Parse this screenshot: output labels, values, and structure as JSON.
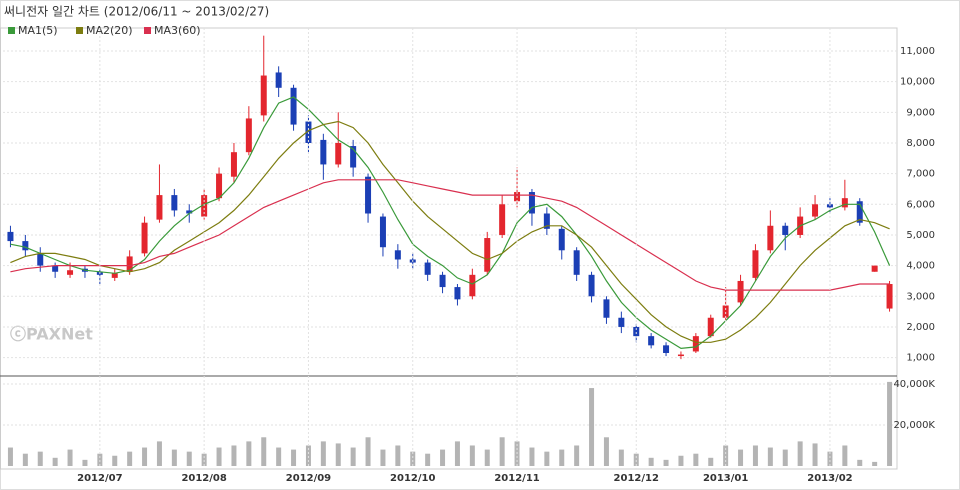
{
  "chart_data": [
    {
      "type": "candlestick",
      "title": "써니전자 일간 차트 (2012/06/11 ~ 2013/02/27)",
      "watermark": "ⓒPAXNet",
      "up_color": "#e3262e",
      "down_color": "#1b3fb5",
      "open": [
        5100,
        4800,
        4400,
        4000,
        3700,
        3900,
        3800,
        3600,
        3800,
        4400,
        5500,
        6300,
        5800,
        5600,
        6200,
        6900,
        7700,
        8900,
        10300,
        9800,
        8700,
        8100,
        7300,
        7900,
        6900,
        5600,
        4500,
        4200,
        4100,
        3700,
        3300,
        3000,
        3800,
        5000,
        6100,
        6400,
        5700,
        5200,
        4500,
        3700,
        2900,
        2300,
        2000,
        1700,
        1400,
        1050,
        1200,
        1700,
        2300,
        2800,
        3600,
        4500,
        5300,
        5000,
        5600,
        6000,
        5900,
        6100,
        3800,
        2600
      ],
      "high": [
        5300,
        5000,
        4600,
        4100,
        4100,
        4000,
        3900,
        3900,
        4500,
        5600,
        7300,
        6500,
        6000,
        6500,
        7200,
        8000,
        9200,
        11500,
        10500,
        9900,
        8900,
        8300,
        9000,
        8100,
        7000,
        5700,
        4700,
        4400,
        4200,
        3800,
        3400,
        3900,
        5100,
        6300,
        7200,
        6500,
        5900,
        5300,
        4600,
        3800,
        3000,
        2500,
        2100,
        1800,
        1500,
        1200,
        1800,
        2400,
        3300,
        3700,
        4700,
        5800,
        5400,
        5900,
        6300,
        6200,
        6800,
        6200,
        4000,
        3500
      ],
      "low": [
        4600,
        4300,
        3800,
        3600,
        3600,
        3600,
        3400,
        3500,
        3700,
        4300,
        5400,
        5600,
        5400,
        5500,
        6100,
        6700,
        7600,
        8700,
        9500,
        8400,
        7700,
        6800,
        7200,
        6900,
        5400,
        4300,
        3900,
        3900,
        3500,
        3100,
        2700,
        2900,
        3700,
        4900,
        5900,
        5300,
        5000,
        4200,
        3500,
        2800,
        2100,
        1800,
        1500,
        1300,
        1050,
        950,
        1150,
        1650,
        2200,
        2700,
        3500,
        4400,
        4500,
        4900,
        5500,
        5700,
        5800,
        5300,
        3800,
        2500
      ],
      "close": [
        4800,
        4500,
        4000,
        3800,
        3850,
        3800,
        3700,
        3750,
        4300,
        5400,
        6300,
        5800,
        5700,
        6300,
        7000,
        7700,
        8800,
        10200,
        9800,
        8600,
        8000,
        7300,
        8000,
        7200,
        5700,
        4600,
        4200,
        4100,
        3700,
        3300,
        2900,
        3700,
        4900,
        6000,
        6400,
        5700,
        5200,
        4500,
        3700,
        3000,
        2300,
        2000,
        1700,
        1400,
        1150,
        1100,
        1700,
        2300,
        2700,
        3500,
        4500,
        5300,
        5000,
        5600,
        6000,
        5900,
        6200,
        5400,
        4000,
        3400
      ],
      "series": [
        {
          "name": "MA1(5)",
          "color": "#3a9a3a",
          "values": [
            4700,
            4600,
            4400,
            4200,
            4000,
            3850,
            3800,
            3750,
            3850,
            4200,
            4800,
            5300,
            5700,
            6000,
            6200,
            6700,
            7500,
            8500,
            9300,
            9500,
            9100,
            8600,
            8100,
            7800,
            7200,
            6400,
            5500,
            4700,
            4300,
            4000,
            3600,
            3400,
            3700,
            4400,
            5400,
            5900,
            6000,
            5600,
            5000,
            4300,
            3500,
            2800,
            2300,
            1900,
            1600,
            1300,
            1350,
            1700,
            2200,
            2700,
            3500,
            4300,
            4900,
            5300,
            5500,
            5800,
            6000,
            6000,
            5100,
            4000
          ]
        },
        {
          "name": "MA2(20)",
          "color": "#7d7d10",
          "values": [
            4100,
            4300,
            4400,
            4400,
            4300,
            4200,
            4000,
            3900,
            3800,
            3900,
            4100,
            4500,
            4800,
            5100,
            5400,
            5800,
            6300,
            6900,
            7500,
            8000,
            8400,
            8600,
            8700,
            8500,
            8000,
            7300,
            6700,
            6100,
            5600,
            5200,
            4800,
            4400,
            4200,
            4400,
            4800,
            5100,
            5300,
            5300,
            5000,
            4600,
            4000,
            3400,
            2900,
            2400,
            2000,
            1700,
            1500,
            1500,
            1600,
            1900,
            2300,
            2800,
            3400,
            4000,
            4500,
            4900,
            5300,
            5500,
            5400,
            5200
          ]
        },
        {
          "name": "MA3(60)",
          "color": "#d9304f",
          "values": [
            3800,
            3900,
            3950,
            4000,
            4000,
            4000,
            4000,
            4000,
            4000,
            4100,
            4300,
            4400,
            4600,
            4800,
            5000,
            5300,
            5600,
            5900,
            6100,
            6300,
            6500,
            6700,
            6800,
            6800,
            6800,
            6800,
            6800,
            6700,
            6600,
            6500,
            6400,
            6300,
            6300,
            6300,
            6300,
            6300,
            6200,
            6100,
            5900,
            5600,
            5300,
            5000,
            4700,
            4400,
            4100,
            3800,
            3500,
            3300,
            3200,
            3200,
            3200,
            3200,
            3200,
            3200,
            3200,
            3200,
            3300,
            3400,
            3400,
            3400
          ]
        }
      ],
      "ylim": [
        400,
        11750
      ],
      "yticks": [
        {
          "value": 1000,
          "label": "1,000"
        },
        {
          "value": 2000,
          "label": "2,000"
        },
        {
          "value": 3000,
          "label": "3,000"
        },
        {
          "value": 4000,
          "label": "4,000"
        },
        {
          "value": 5000,
          "label": "5,000"
        },
        {
          "value": 6000,
          "label": "6,000"
        },
        {
          "value": 7000,
          "label": "7,000"
        },
        {
          "value": 8000,
          "label": "8,000"
        },
        {
          "value": 9000,
          "label": "9,000"
        },
        {
          "value": 10000,
          "label": "10,000"
        },
        {
          "value": 11000,
          "label": "11,000"
        }
      ],
      "grid": true
    },
    {
      "type": "bar",
      "color": "#b4b4b4",
      "categories": [
        null,
        null,
        null,
        null,
        null,
        null,
        "2012/07",
        null,
        null,
        null,
        null,
        null,
        null,
        "2012/08",
        null,
        null,
        null,
        null,
        null,
        null,
        "2012/09",
        null,
        null,
        null,
        null,
        null,
        null,
        "2012/10",
        null,
        null,
        null,
        null,
        null,
        null,
        "2012/11",
        null,
        null,
        null,
        null,
        null,
        null,
        null,
        "2012/12",
        null,
        null,
        null,
        null,
        null,
        "2013/01",
        null,
        null,
        null,
        null,
        null,
        null,
        "2013/02",
        null,
        null,
        null,
        null
      ],
      "values": [
        9000,
        6000,
        7000,
        4000,
        8000,
        3000,
        6000,
        5000,
        7000,
        9000,
        12000,
        8000,
        7000,
        6000,
        9000,
        10000,
        12000,
        14000,
        9000,
        8000,
        10000,
        12000,
        11000,
        9000,
        14000,
        8000,
        10000,
        7000,
        6000,
        8000,
        12000,
        10000,
        8000,
        14000,
        12000,
        9000,
        7000,
        8000,
        10000,
        38000,
        14000,
        8000,
        6000,
        4000,
        3000,
        5000,
        6000,
        4000,
        10000,
        8000,
        10000,
        9000,
        8000,
        12000,
        11000,
        7000,
        10000,
        3000,
        2000,
        41000
      ],
      "ylim": [
        0,
        42900
      ],
      "yticks": [
        {
          "value": 20000,
          "label": "20,000K"
        },
        {
          "value": 40000,
          "label": "40,000K"
        }
      ],
      "grid": true
    }
  ]
}
